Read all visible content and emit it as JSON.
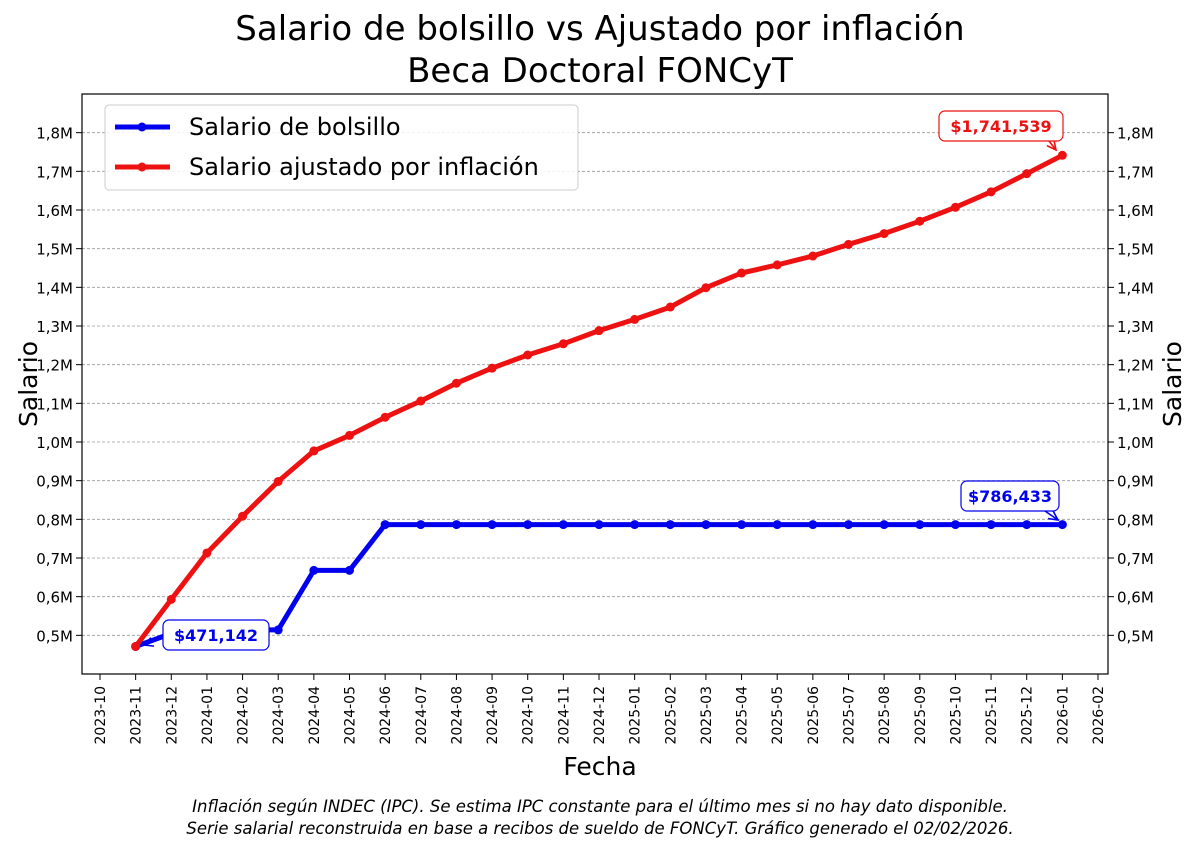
{
  "chart_data": {
    "type": "line",
    "title": "Salario de bolsillo vs Ajustado por inflación",
    "subtitle": "Beca Doctoral FONCyT",
    "xlabel": "Fecha",
    "ylabel": "Salario",
    "ylabel_right": "Salario",
    "grid": true,
    "legend_position": "top-left",
    "ylim": [
      400000,
      1900000
    ],
    "x_ticks": [
      "2023-10",
      "2023-11",
      "2023-12",
      "2024-01",
      "2024-02",
      "2024-03",
      "2024-04",
      "2024-05",
      "2024-06",
      "2024-07",
      "2024-08",
      "2024-09",
      "2024-10",
      "2024-11",
      "2024-12",
      "2025-01",
      "2025-02",
      "2025-03",
      "2025-04",
      "2025-05",
      "2025-06",
      "2025-07",
      "2025-08",
      "2025-09",
      "2025-10",
      "2025-11",
      "2025-12",
      "2026-01",
      "2026-02"
    ],
    "y_ticks_left": [
      {
        "value": 500000,
        "label": "0,5M"
      },
      {
        "value": 600000,
        "label": "0,6M"
      },
      {
        "value": 700000,
        "label": "0,7M"
      },
      {
        "value": 800000,
        "label": "0,8M"
      },
      {
        "value": 900000,
        "label": "0,9M"
      },
      {
        "value": 1000000,
        "label": "1,0M"
      },
      {
        "value": 1100000,
        "label": "1,1M"
      },
      {
        "value": 1200000,
        "label": "1,2M"
      },
      {
        "value": 1300000,
        "label": "1,3M"
      },
      {
        "value": 1400000,
        "label": "1,4M"
      },
      {
        "value": 1500000,
        "label": "1,5M"
      },
      {
        "value": 1600000,
        "label": "1,6M"
      },
      {
        "value": 1700000,
        "label": "1,7M"
      },
      {
        "value": 1800000,
        "label": "1,8M"
      }
    ],
    "y_ticks_right": [
      {
        "value": 500000,
        "label": "0,5M"
      },
      {
        "value": 600000,
        "label": "0,6M"
      },
      {
        "value": 700000,
        "label": "0,7M"
      },
      {
        "value": 800000,
        "label": "0,8M"
      },
      {
        "value": 900000,
        "label": "0,9M"
      },
      {
        "value": 1000000,
        "label": "1,0M"
      },
      {
        "value": 1100000,
        "label": "1,1M"
      },
      {
        "value": 1200000,
        "label": "1,2M"
      },
      {
        "value": 1300000,
        "label": "1,3M"
      },
      {
        "value": 1400000,
        "label": "1,4M"
      },
      {
        "value": 1500000,
        "label": "1,5M"
      },
      {
        "value": 1600000,
        "label": "1,6M"
      },
      {
        "value": 1700000,
        "label": "1,7M"
      },
      {
        "value": 1800000,
        "label": "1,8M"
      }
    ],
    "x": [
      "2023-11",
      "2023-12",
      "2024-01",
      "2024-02",
      "2024-03",
      "2024-04",
      "2024-05",
      "2024-06",
      "2024-07",
      "2024-08",
      "2024-09",
      "2024-10",
      "2024-11",
      "2024-12",
      "2025-01",
      "2025-02",
      "2025-03",
      "2025-04",
      "2025-05",
      "2025-06",
      "2025-07",
      "2025-08",
      "2025-09",
      "2025-10",
      "2025-11",
      "2025-12",
      "2026-01"
    ],
    "series": [
      {
        "name": "Salario de bolsillo",
        "color": "#0000ee",
        "values": [
          471142,
          505000,
          511000,
          514000,
          514000,
          668000,
          668000,
          786433,
          786433,
          786433,
          786433,
          786433,
          786433,
          786433,
          786433,
          786433,
          786433,
          786433,
          786433,
          786433,
          786433,
          786433,
          786433,
          786433,
          786433,
          786433,
          786433
        ]
      },
      {
        "name": "Salario ajustado por inflación",
        "color": "#ee1111",
        "values": [
          471142,
          593000,
          713000,
          808000,
          898000,
          977000,
          1017000,
          1064000,
          1106000,
          1152000,
          1191000,
          1225000,
          1254000,
          1288000,
          1317000,
          1349000,
          1399000,
          1437000,
          1458000,
          1481000,
          1511000,
          1539000,
          1571000,
          1607000,
          1647000,
          1694000,
          1741539
        ]
      }
    ],
    "annotations": [
      {
        "series": 0,
        "index": 0,
        "text": "$471,142",
        "color": "#0000ee"
      },
      {
        "series": 0,
        "index": 26,
        "text": "$786,433",
        "color": "#0000ee"
      },
      {
        "series": 1,
        "index": 26,
        "text": "$1,741,539",
        "color": "#ee1111"
      }
    ]
  },
  "footnote_line1": "Inflación según INDEC (IPC). Se estima IPC constante para el último mes si no hay dato disponible.",
  "footnote_line2": "Serie salarial reconstruida en base a recibos de sueldo de FONCyT. Gráfico generado el 02/02/2026."
}
